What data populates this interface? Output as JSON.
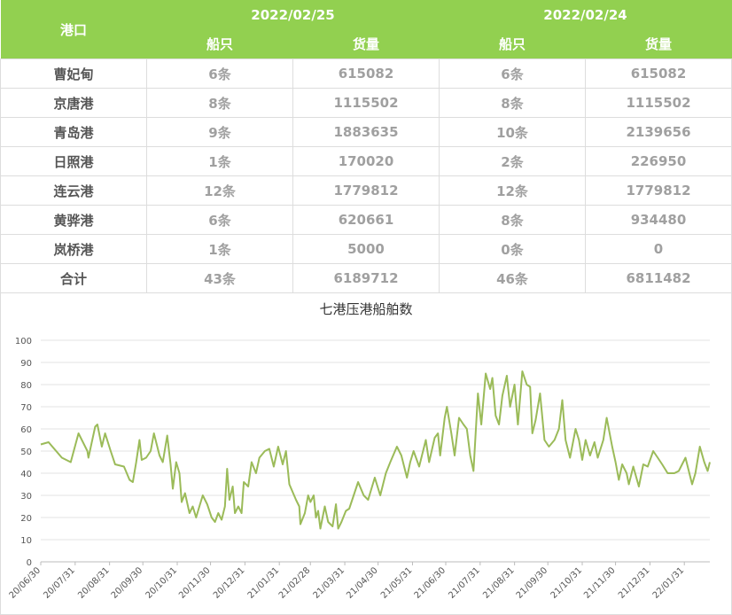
{
  "table": {
    "port_header": "港口",
    "dates": [
      "2022/02/25",
      "2022/02/24"
    ],
    "subheaders": [
      "船只",
      "货量",
      "船只",
      "货量"
    ],
    "rows": [
      [
        "曹妃甸",
        "6条",
        "615082",
        "6条",
        "615082"
      ],
      [
        "京唐港",
        "8条",
        "1115502",
        "8条",
        "1115502"
      ],
      [
        "青岛港",
        "9条",
        "1883635",
        "10条",
        "2139656"
      ],
      [
        "日照港",
        "1条",
        "170020",
        "2条",
        "226950"
      ],
      [
        "连云港",
        "12条",
        "1779812",
        "12条",
        "1779812"
      ],
      [
        "黄骅港",
        "6条",
        "620661",
        "8条",
        "934480"
      ],
      [
        "岚桥港",
        "1条",
        "5000",
        "0条",
        "0"
      ],
      [
        "合计",
        "43条",
        "6189712",
        "46条",
        "6811482"
      ]
    ]
  },
  "chart_data": {
    "type": "line",
    "title": "七港压港船舶数",
    "color": "#9bbb59",
    "grid": true,
    "ylim": [
      0,
      100
    ],
    "yticks": [
      0,
      10,
      20,
      30,
      40,
      50,
      60,
      70,
      80,
      90,
      100
    ],
    "xlim": [
      "20/06/30",
      "22/02/23"
    ],
    "xticks": [
      "20/06/30",
      "20/07/31",
      "20/08/31",
      "20/09/30",
      "20/10/31",
      "20/11/30",
      "20/12/31",
      "21/01/31",
      "21/02/28",
      "21/03/31",
      "21/04/30",
      "21/05/31",
      "21/06/30",
      "21/07/31",
      "21/08/31",
      "21/09/30",
      "21/10/31",
      "21/11/30",
      "21/12/31",
      "22/01/31"
    ],
    "x": [
      "20/06/30",
      "20/07/07",
      "20/07/19",
      "20/07/27",
      "20/08/03",
      "20/08/11",
      "20/08/12",
      "20/08/18",
      "20/08/20",
      "20/08/24",
      "20/08/27",
      "20/09/01",
      "20/09/05",
      "20/09/13",
      "20/09/18",
      "20/09/21",
      "20/09/24",
      "20/09/27",
      "20/09/29",
      "20/10/03",
      "20/10/07",
      "20/10/10",
      "20/10/15",
      "20/10/18",
      "20/10/22",
      "20/10/25",
      "20/10/27",
      "20/10/30",
      "20/11/02",
      "20/11/04",
      "20/11/07",
      "20/11/11",
      "20/11/14",
      "20/11/17",
      "20/11/20",
      "20/11/23",
      "20/11/27",
      "20/12/01",
      "20/12/04",
      "20/12/07",
      "20/12/10",
      "20/12/13",
      "20/12/15",
      "20/12/17",
      "20/12/20",
      "20/12/22",
      "20/12/25",
      "20/12/28",
      "20/12/30",
      "21/01/03",
      "21/01/06",
      "21/01/10",
      "21/01/13",
      "21/01/18",
      "21/01/22",
      "21/01/26",
      "21/01/30",
      "21/02/03",
      "21/02/06",
      "21/02/09",
      "21/02/15",
      "21/02/18",
      "21/02/19",
      "21/02/23",
      "21/02/26",
      "21/02/28",
      "21/03/03",
      "21/03/05",
      "21/03/07",
      "21/03/09",
      "21/03/13",
      "21/03/16",
      "21/03/20",
      "21/03/23",
      "21/03/25",
      "21/03/28",
      "21/04/01",
      "21/04/04",
      "21/04/12",
      "21/04/17",
      "21/04/21",
      "21/04/27",
      "21/05/02",
      "21/05/07",
      "21/05/11",
      "21/05/17",
      "21/05/21",
      "21/05/26",
      "21/05/29",
      "21/06/01",
      "21/06/06",
      "21/06/12",
      "21/06/15",
      "21/06/20",
      "21/06/23",
      "21/06/25",
      "21/06/29",
      "21/07/01",
      "21/07/05",
      "21/07/08",
      "21/07/12",
      "21/07/16",
      "21/07/19",
      "21/07/22",
      "21/07/25",
      "21/07/29",
      "21/08/01",
      "21/08/05",
      "21/08/09",
      "21/08/11",
      "21/08/14",
      "21/08/17",
      "21/08/20",
      "21/08/24",
      "21/08/27",
      "21/08/31",
      "21/09/03",
      "21/09/07",
      "21/09/11",
      "21/09/14",
      "21/09/16",
      "21/09/19",
      "21/09/23",
      "21/09/27",
      "21/10/01",
      "21/10/06",
      "21/10/10",
      "21/10/13",
      "21/10/16",
      "21/10/20",
      "21/10/25",
      "21/10/28",
      "21/10/31",
      "21/11/03",
      "21/11/07",
      "21/11/11",
      "21/11/14",
      "21/11/19",
      "21/11/22",
      "21/11/27",
      "21/11/30",
      "21/12/03",
      "21/12/06",
      "21/12/10",
      "21/12/12",
      "21/12/16",
      "21/12/21",
      "21/12/25",
      "21/12/29",
      "22/01/03",
      "22/01/07",
      "22/01/11",
      "22/01/16",
      "22/01/22",
      "22/01/26",
      "22/02/01",
      "22/02/07",
      "22/02/10",
      "22/02/14",
      "22/02/18",
      "22/02/21",
      "22/02/23"
    ],
    "values": [
      53,
      54,
      47,
      45,
      58,
      50,
      47,
      61,
      62,
      52,
      58,
      50,
      44,
      43,
      37,
      36,
      45,
      55,
      46,
      47,
      50,
      58,
      48,
      45,
      57,
      44,
      33,
      45,
      40,
      27,
      31,
      22,
      25,
      20,
      25,
      30,
      26,
      20,
      18,
      22,
      19,
      25,
      42,
      28,
      34,
      22,
      25,
      22,
      36,
      34,
      45,
      40,
      47,
      50,
      51,
      43,
      52,
      44,
      50,
      35,
      28,
      25,
      17,
      22,
      30,
      27,
      30,
      20,
      23,
      15,
      25,
      18,
      16,
      26,
      15,
      18,
      23,
      24,
      36,
      30,
      28,
      38,
      30,
      40,
      45,
      52,
      48,
      38,
      45,
      50,
      43,
      55,
      45,
      56,
      58,
      48,
      65,
      70,
      58,
      48,
      65,
      62,
      60,
      48,
      41,
      76,
      62,
      85,
      78,
      83,
      66,
      62,
      75,
      84,
      70,
      80,
      62,
      86,
      80,
      79,
      58,
      64,
      76,
      55,
      52,
      55,
      60,
      73,
      55,
      47,
      60,
      55,
      46,
      55,
      48,
      54,
      47,
      55,
      65,
      52,
      45,
      37,
      44,
      40,
      35,
      43,
      34,
      44,
      43,
      50,
      47,
      44,
      40,
      40,
      41,
      47,
      35,
      40,
      52,
      45,
      41,
      45
    ]
  }
}
